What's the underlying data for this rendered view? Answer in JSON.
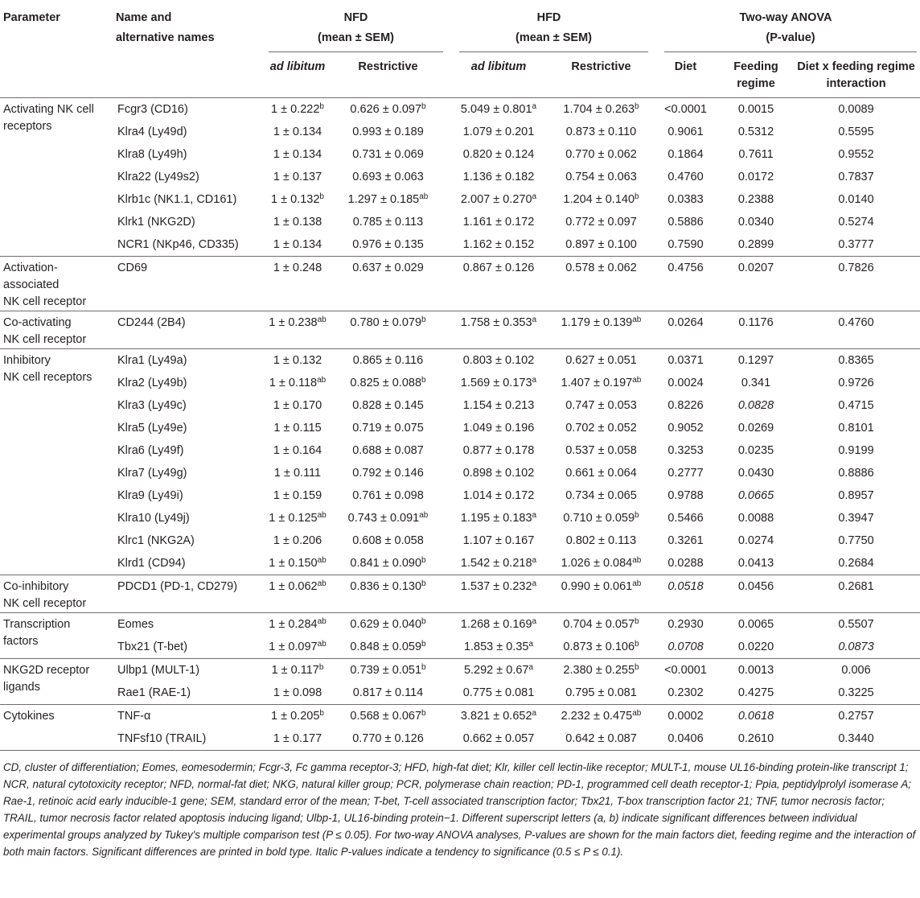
{
  "header": {
    "parameter": "Parameter",
    "name": [
      "Name and",
      "alternative names"
    ],
    "groups": [
      {
        "title": "NFD",
        "sub": "(mean ± SEM)"
      },
      {
        "title": "HFD",
        "sub": "(mean ± SEM)"
      },
      {
        "title": "Two-way ANOVA",
        "sub": "(P-value)"
      }
    ],
    "columns": [
      {
        "text": "ad libitum",
        "italic": true
      },
      "Restrictive",
      {
        "text": "ad libitum",
        "italic": true
      },
      "Restrictive",
      "Diet",
      "Feeding regime",
      "Diet x feeding regime interaction"
    ]
  },
  "groups": [
    {
      "parameter": [
        "Activating NK cell",
        "receptors"
      ],
      "rows": [
        [
          "Fcgr3 (CD16)",
          {
            "text": "1 ± 0.222",
            "sup": "b"
          },
          {
            "text": "0.626 ± 0.097",
            "sup": "b"
          },
          {
            "text": "5.049 ± 0.801",
            "sup": "a"
          },
          {
            "text": "1.704 ± 0.263",
            "sup": "b"
          },
          "<0.0001",
          "0.0015",
          "0.0089"
        ],
        [
          "Klra4 (Ly49d)",
          "1 ± 0.134",
          "0.993 ± 0.189",
          "1.079 ± 0.201",
          "0.873 ± 0.110",
          "0.9061",
          "0.5312",
          "0.5595"
        ],
        [
          "Klra8 (Ly49h)",
          "1 ± 0.134",
          "0.731 ± 0.069",
          "0.820 ± 0.124",
          "0.770 ± 0.062",
          "0.1864",
          "0.7611",
          "0.9552"
        ],
        [
          "Klra22 (Ly49s2)",
          "1 ± 0.137",
          "0.693 ± 0.063",
          "1.136 ± 0.182",
          "0.754 ± 0.063",
          "0.4760",
          "0.0172",
          "0.7837"
        ],
        [
          "Klrb1c (NK1.1, CD161)",
          {
            "text": "1 ± 0.132",
            "sup": "b"
          },
          {
            "text": "1.297 ± 0.185",
            "sup": "ab"
          },
          {
            "text": "2.007 ± 0.270",
            "sup": "a"
          },
          {
            "text": "1.204 ± 0.140",
            "sup": "b"
          },
          "0.0383",
          "0.2388",
          "0.0140"
        ],
        [
          "Klrk1 (NKG2D)",
          "1 ± 0.138",
          "0.785 ± 0.113",
          "1.161 ± 0.172",
          "0.772 ± 0.097",
          "0.5886",
          "0.0340",
          "0.5274"
        ],
        [
          "NCR1 (NKp46, CD335)",
          "1 ± 0.134",
          "0.976 ± 0.135",
          "1.162 ± 0.152",
          "0.897 ± 0.100",
          "0.7590",
          "0.2899",
          "0.3777"
        ]
      ]
    },
    {
      "parameter": [
        "Activation-",
        "associated",
        "NK cell receptor"
      ],
      "rows": [
        [
          "CD69",
          "1 ± 0.248",
          "0.637 ± 0.029",
          "0.867 ± 0.126",
          "0.578 ± 0.062",
          "0.4756",
          "0.0207",
          "0.7826"
        ]
      ]
    },
    {
      "parameter": [
        "Co-activating",
        "NK cell receptor"
      ],
      "rows": [
        [
          "CD244 (2B4)",
          {
            "text": "1 ± 0.238",
            "sup": "ab"
          },
          {
            "text": "0.780 ± 0.079",
            "sup": "b"
          },
          {
            "text": "1.758 ± 0.353",
            "sup": "a"
          },
          {
            "text": "1.179 ± 0.139",
            "sup": "ab"
          },
          "0.0264",
          "0.1176",
          "0.4760"
        ]
      ]
    },
    {
      "parameter": [
        "Inhibitory",
        "NK cell receptors"
      ],
      "rows": [
        [
          "Klra1 (Ly49a)",
          "1 ± 0.132",
          "0.865 ± 0.116",
          "0.803 ± 0.102",
          "0.627 ± 0.051",
          "0.0371",
          "0.1297",
          "0.8365"
        ],
        [
          "Klra2 (Ly49b)",
          {
            "text": "1 ± 0.118",
            "sup": "ab"
          },
          {
            "text": "0.825 ± 0.088",
            "sup": "b"
          },
          {
            "text": "1.569 ± 0.173",
            "sup": "a"
          },
          {
            "text": "1.407 ± 0.197",
            "sup": "ab"
          },
          "0.0024",
          "0.341",
          "0.9726"
        ],
        [
          "Klra3 (Ly49c)",
          "1 ± 0.170",
          "0.828 ± 0.145",
          "1.154 ± 0.213",
          "0.747 ± 0.053",
          "0.8226",
          {
            "text": "0.0828",
            "italic": true
          },
          "0.4715"
        ],
        [
          "Klra5 (Ly49e)",
          "1 ± 0.115",
          "0.719 ± 0.075",
          "1.049 ± 0.196",
          "0.702 ± 0.052",
          "0.9052",
          "0.0269",
          "0.8101"
        ],
        [
          "Klra6 (Ly49f)",
          "1 ± 0.164",
          "0.688 ± 0.087",
          "0.877 ± 0.178",
          "0.537 ± 0.058",
          "0.3253",
          "0.0235",
          "0.9199"
        ],
        [
          "Klra7 (Ly49g)",
          "1 ± 0.111",
          "0.792 ± 0.146",
          "0.898 ± 0.102",
          "0.661 ± 0.064",
          "0.2777",
          "0.0430",
          "0.8886"
        ],
        [
          "Klra9 (Ly49i)",
          "1 ± 0.159",
          "0.761 ± 0.098",
          "1.014 ± 0.172",
          "0.734 ± 0.065",
          "0.9788",
          {
            "text": "0.0665",
            "italic": true
          },
          "0.8957"
        ],
        [
          "Klra10 (Ly49j)",
          {
            "text": "1 ± 0.125",
            "sup": "ab"
          },
          {
            "text": "0.743 ± 0.091",
            "sup": "ab"
          },
          {
            "text": "1.195 ± 0.183",
            "sup": "a"
          },
          {
            "text": "0.710 ± 0.059",
            "sup": "b"
          },
          "0.5466",
          "0.0088",
          "0.3947"
        ],
        [
          "Klrc1 (NKG2A)",
          "1 ± 0.206",
          "0.608 ± 0.058",
          "1.107 ± 0.167",
          "0.802 ± 0.113",
          "0.3261",
          "0.0274",
          "0.7750"
        ],
        [
          "Klrd1 (CD94)",
          {
            "text": "1 ± 0.150",
            "sup": "ab"
          },
          {
            "text": "0.841 ± 0.090",
            "sup": "b"
          },
          {
            "text": "1.542 ± 0.218",
            "sup": "a"
          },
          {
            "text": "1.026 ± 0.084",
            "sup": "ab"
          },
          "0.0288",
          "0.0413",
          "0.2684"
        ]
      ]
    },
    {
      "parameter": [
        "Co-inhibitory",
        "NK cell receptor"
      ],
      "rows": [
        [
          "PDCD1 (PD-1, CD279)",
          {
            "text": "1 ± 0.062",
            "sup": "ab"
          },
          {
            "text": "0.836 ± 0.130",
            "sup": "b"
          },
          {
            "text": "1.537 ± 0.232",
            "sup": "a"
          },
          {
            "text": "0.990 ± 0.061",
            "sup": "ab"
          },
          {
            "text": "0.0518",
            "italic": true
          },
          "0.0456",
          "0.2681"
        ]
      ]
    },
    {
      "parameter": [
        "Transcription",
        "factors"
      ],
      "rows": [
        [
          "Eomes",
          {
            "text": "1 ± 0.284",
            "sup": "ab"
          },
          {
            "text": "0.629 ± 0.040",
            "sup": "b"
          },
          {
            "text": "1.268 ± 0.169",
            "sup": "a"
          },
          {
            "text": "0.704 ± 0.057",
            "sup": "b"
          },
          "0.2930",
          "0.0065",
          "0.5507"
        ],
        [
          "Tbx21 (T-bet)",
          {
            "text": "1 ± 0.097",
            "sup": "ab"
          },
          {
            "text": "0.848 ± 0.059",
            "sup": "b"
          },
          {
            "text": "1.853 ± 0.35",
            "sup": "a"
          },
          {
            "text": "0.873 ± 0.106",
            "sup": "b"
          },
          {
            "text": "0.0708",
            "italic": true
          },
          "0.0220",
          {
            "text": "0.0873",
            "italic": true
          }
        ]
      ]
    },
    {
      "parameter": [
        "NKG2D receptor",
        "ligands"
      ],
      "rows": [
        [
          "Ulbp1 (MULT-1)",
          {
            "text": "1 ± 0.117",
            "sup": "b"
          },
          {
            "text": "0.739 ± 0.051",
            "sup": "b"
          },
          {
            "text": "5.292 ± 0.67",
            "sup": "a"
          },
          {
            "text": "2.380 ± 0.255",
            "sup": "b"
          },
          "<0.0001",
          "0.0013",
          "0.006"
        ],
        [
          "Rae1 (RAE-1)",
          "1 ± 0.098",
          "0.817 ± 0.114",
          "0.775 ± 0.081",
          "0.795 ± 0.081",
          "0.2302",
          "0.4275",
          "0.3225"
        ]
      ]
    },
    {
      "parameter": [
        "Cytokines"
      ],
      "rows": [
        [
          "TNF-α",
          {
            "text": "1 ± 0.205",
            "sup": "b"
          },
          {
            "text": "0.568 ± 0.067",
            "sup": "b"
          },
          {
            "text": "3.821 ± 0.652",
            "sup": "a"
          },
          {
            "text": "2.232 ± 0.475",
            "sup": "ab"
          },
          "0.0002",
          {
            "text": "0.0618",
            "italic": true
          },
          "0.2757"
        ],
        [
          "TNFsf10 (TRAIL)",
          "1 ± 0.177",
          "0.770 ± 0.126",
          "0.662 ± 0.057",
          "0.642 ± 0.087",
          "0.0406",
          "0.2610",
          "0.3440"
        ]
      ]
    }
  ],
  "footnote": "CD, cluster of differentiation; Eomes, eomesodermin; Fcgr-3, Fc gamma receptor-3; HFD, high-fat diet; Klr, killer cell lectin-like receptor; MULT-1, mouse UL16-binding protein-like transcript 1; NCR, natural cytotoxicity receptor; NFD, normal-fat diet; NKG, natural killer group; PCR, polymerase chain reaction; PD-1, programmed cell death receptor-1; Ppia, peptidylprolyl isomerase A; Rae-1, retinoic acid early inducible-1 gene; SEM, standard error of the mean; T-bet, T-cell associated transcription factor; Tbx21, T-box transcription factor 21; TNF, tumor necrosis factor; TRAIL, tumor necrosis factor related apoptosis inducing ligand; Ulbp-1, UL16-binding protein−1. Different superscript letters (a, b) indicate significant differences between individual experimental groups analyzed by Tukey's multiple comparison test (P ≤ 0.05). For two-way ANOVA analyses, P-values are shown for the main factors diet, feeding regime and the interaction of both main factors. Significant differences are printed in bold type. Italic P-values indicate a tendency to significance (0.5 ≤ P ≤ 0.1)."
}
